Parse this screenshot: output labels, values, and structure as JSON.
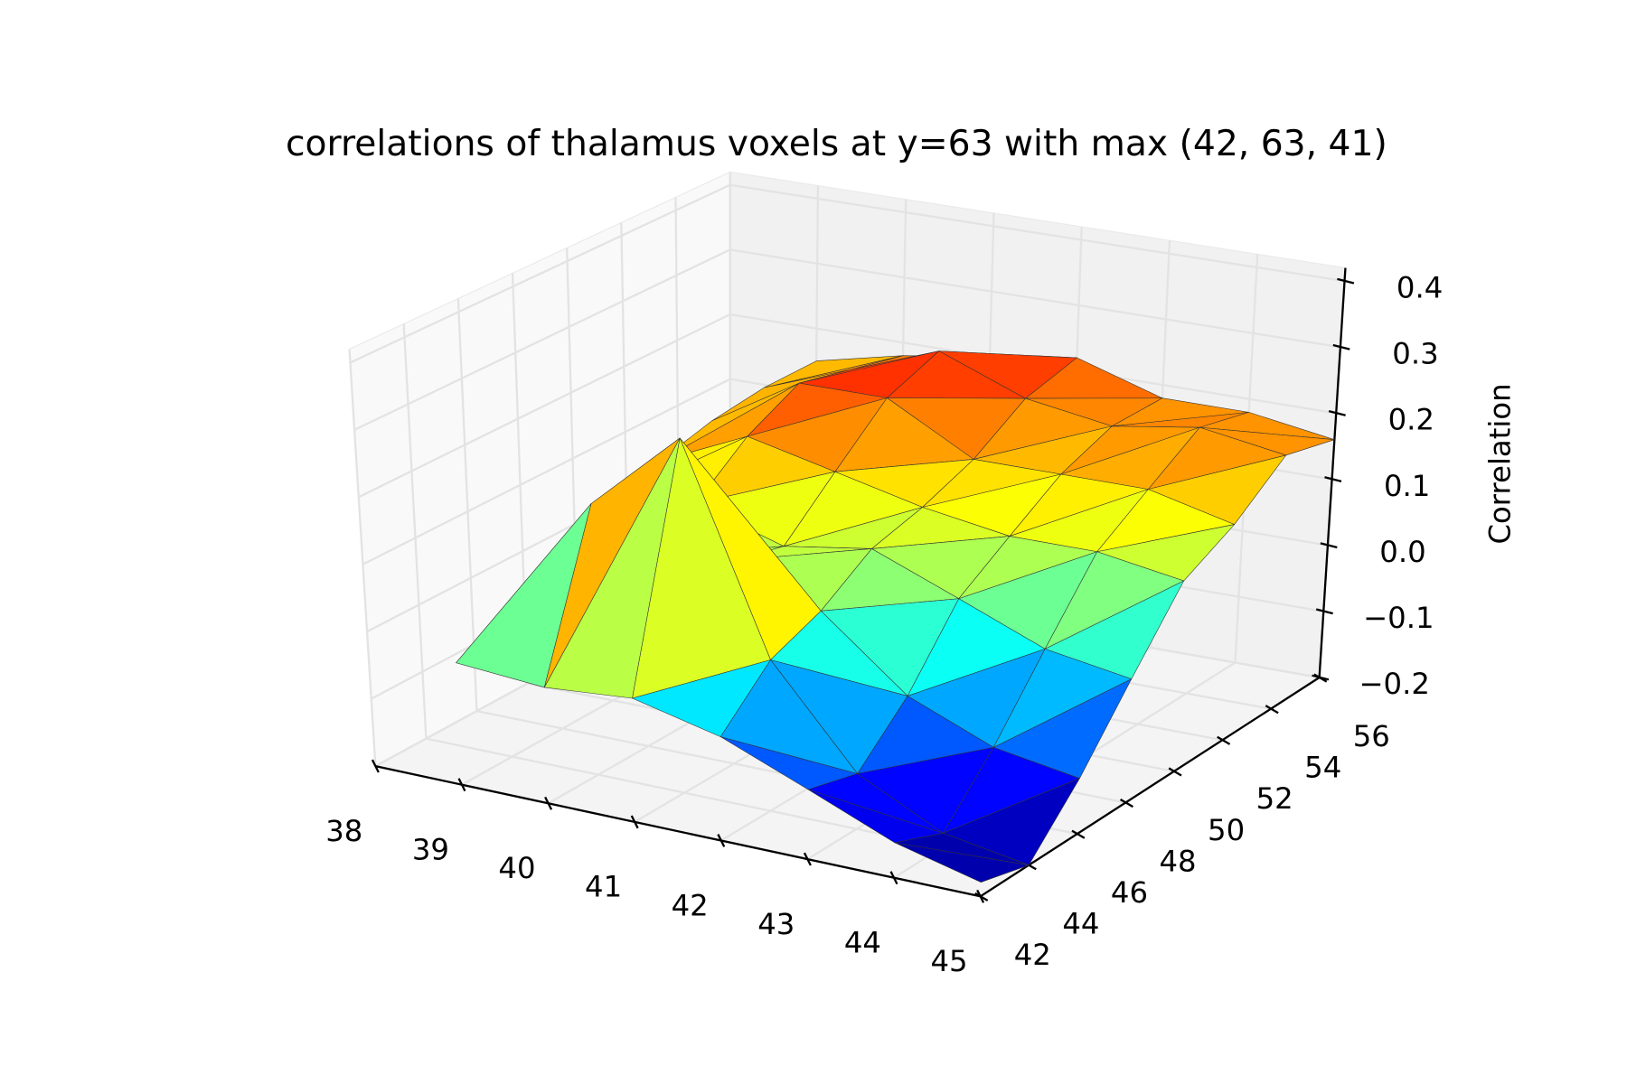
{
  "chart_data": {
    "type": "trisurf",
    "title": "correlations of thalamus voxels at y=63 with max (42, 63, 41)",
    "zlabel": "Correlation",
    "colormap": "jet",
    "edgecolor": "#333333",
    "x": [
      39,
      39,
      39,
      39,
      39,
      39,
      39,
      39,
      40,
      40,
      40,
      40,
      40,
      40,
      40,
      40,
      41,
      41,
      41,
      41,
      41,
      41,
      41,
      41,
      42,
      42,
      42,
      42,
      42,
      42,
      42,
      42,
      43,
      43,
      43,
      43,
      43,
      43,
      43,
      43,
      44,
      44,
      44,
      44,
      44,
      44,
      44,
      44,
      45,
      45,
      45,
      45,
      45,
      45,
      45,
      45
    ],
    "y": [
      42,
      44,
      46,
      48,
      50,
      52,
      54,
      56,
      42,
      44,
      46,
      48,
      50,
      52,
      54,
      56,
      42,
      44,
      46,
      48,
      50,
      52,
      54,
      56,
      42,
      44,
      46,
      48,
      50,
      52,
      54,
      56,
      42,
      44,
      46,
      48,
      50,
      52,
      54,
      56,
      42,
      44,
      46,
      48,
      50,
      52,
      54,
      56,
      42,
      44,
      46,
      48,
      50,
      52,
      54,
      56
    ],
    "z": [
      -0.02,
      0.0,
      0.05,
      0.1,
      0.12,
      0.14,
      0.15,
      0.15,
      -0.03,
      0.2,
      0.08,
      0.12,
      0.18,
      0.22,
      0.2,
      0.18,
      -0.02,
      0.32,
      0.1,
      0.08,
      0.15,
      0.22,
      0.25,
      0.2,
      -0.05,
      0.02,
      0.05,
      0.1,
      0.12,
      0.15,
      0.2,
      0.22,
      -0.1,
      -0.12,
      -0.05,
      0.05,
      0.1,
      0.15,
      0.18,
      0.18,
      -0.15,
      -0.18,
      -0.1,
      0.0,
      0.1,
      0.15,
      0.2,
      0.18,
      -0.18,
      -0.2,
      -0.12,
      -0.02,
      0.08,
      0.12,
      0.18,
      0.16
    ],
    "xlim": [
      38,
      45
    ],
    "ylim": [
      42,
      56
    ],
    "zlim": [
      -0.2,
      0.42
    ],
    "xticks": [
      38,
      39,
      40,
      41,
      42,
      43,
      44,
      45
    ],
    "yticks": [
      42,
      44,
      46,
      48,
      50,
      52,
      54,
      56
    ],
    "zticks": [
      {
        "value": -0.2,
        "label": "−0.2"
      },
      {
        "value": -0.1,
        "label": "−0.1"
      },
      {
        "value": 0,
        "label": "0.0"
      },
      0.1,
      0.2,
      0.3,
      0.4
    ],
    "grid": true
  }
}
